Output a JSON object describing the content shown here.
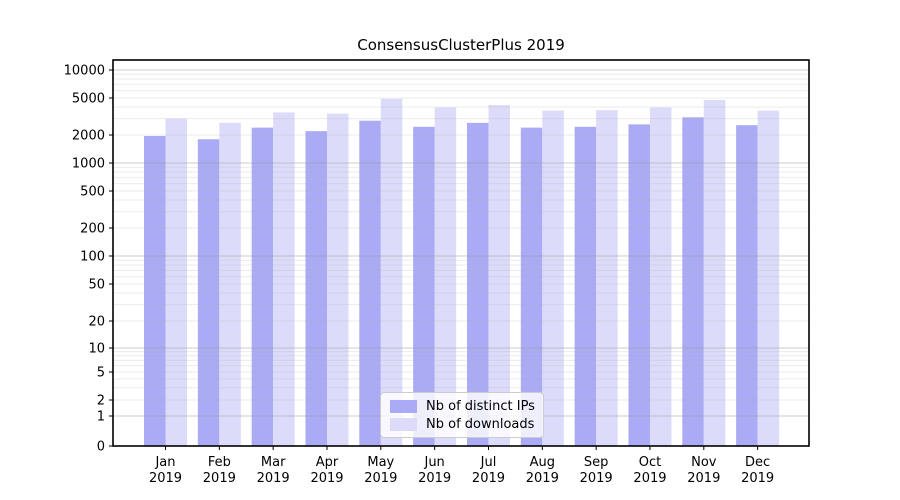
{
  "title": "ConsensusClusterPlus 2019",
  "colors": {
    "distinct_ips": "#aaaaf5",
    "downloads": "#dcdcfa",
    "grid_major": "#9a9a9a",
    "grid_minor": "#b0b0b0",
    "axis": "#000000",
    "legend_border": "#cccccc",
    "background": "#ffffff",
    "text": "#000000"
  },
  "legend": {
    "items": [
      {
        "label": "Nb of distinct IPs",
        "color_key": "distinct_ips"
      },
      {
        "label": "Nb of downloads",
        "color_key": "downloads"
      }
    ]
  },
  "chart_data": {
    "type": "bar",
    "title": "ConsensusClusterPlus 2019",
    "categories": [
      "Jan 2019",
      "Feb 2019",
      "Mar 2019",
      "Apr 2019",
      "May 2019",
      "Jun 2019",
      "Jul 2019",
      "Aug 2019",
      "Sep 2019",
      "Oct 2019",
      "Nov 2019",
      "Dec 2019"
    ],
    "series": [
      {
        "name": "Nb of distinct IPs",
        "color_key": "distinct_ips",
        "values": [
          1950,
          1800,
          2400,
          2200,
          2850,
          2450,
          2700,
          2400,
          2450,
          2600,
          3100,
          2550
        ]
      },
      {
        "name": "Nb of downloads",
        "color_key": "downloads",
        "values": [
          3000,
          2700,
          3500,
          3400,
          4900,
          3950,
          4200,
          3650,
          3700,
          3950,
          4750,
          3650
        ]
      }
    ],
    "yscale": "symlog",
    "ylim": [
      0,
      10000
    ],
    "yticks": [
      10000,
      5000,
      2000,
      1000,
      500,
      200,
      100,
      50,
      20,
      10,
      5,
      2,
      1,
      0
    ],
    "grid": true,
    "legend_position": "lower center"
  }
}
